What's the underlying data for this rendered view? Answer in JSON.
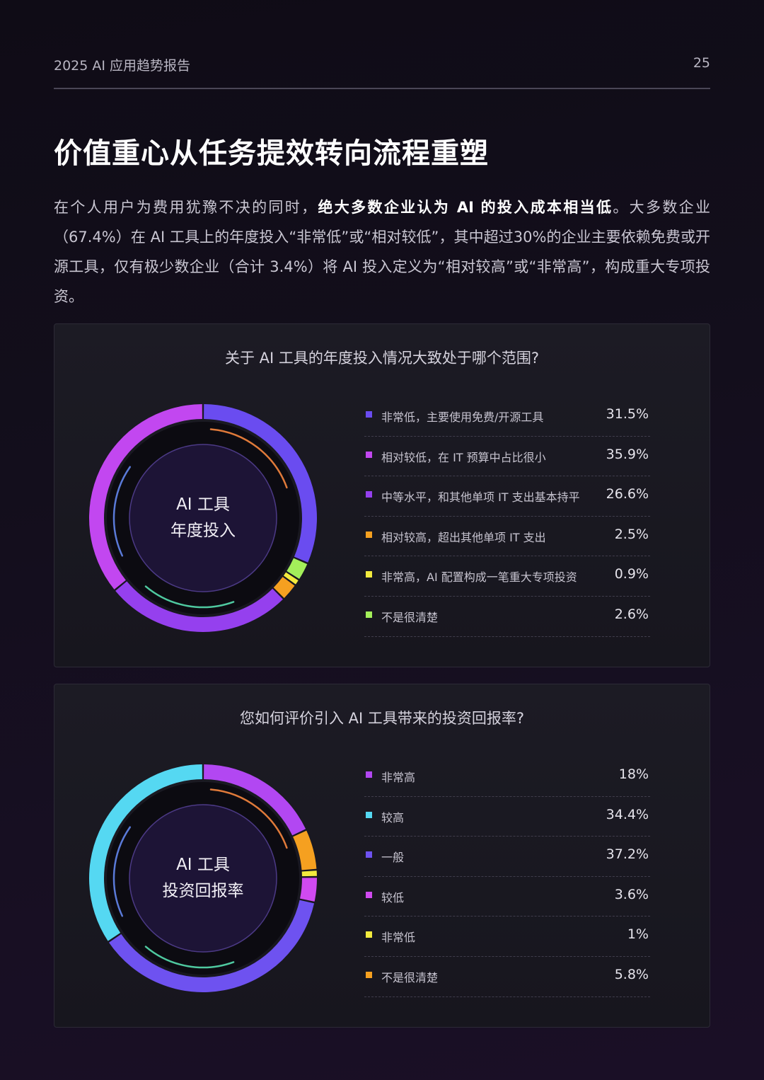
{
  "header": {
    "doc_title": "2025 AI 应用趋势报告",
    "page_number": "25"
  },
  "page_title": "价值重心从任务提效转向流程重塑",
  "intro": {
    "part1": "在个人用户为费用犹豫不决的同时，",
    "bold": "绝大多数企业认为 AI 的投入成本相当低",
    "part2": "。大多数企业（67.4%）在 AI 工具上的年度投入“非常低”或“相对较低”，其中超过30%的企业主要依赖免费或开源工具，仅有极少数企业（合计 3.4%）将 AI 投入定义为“相对较高”或“非常高”，构成重大专项投资。"
  },
  "chart_data": [
    {
      "type": "pie",
      "title": "关于 AI 工具的年度投入情况大致处于哪个范围?",
      "center_label_line1": "AI 工具",
      "center_label_line2": "年度投入",
      "slices": [
        {
          "label": "非常低，主要使用免费/开源工具",
          "value": 31.5,
          "display": "31.5%",
          "color": "#6a4cf0"
        },
        {
          "label": "相对较低，在 IT 预算中占比很小",
          "value": 35.9,
          "display": "35.9%",
          "color": "#c247f0"
        },
        {
          "label": "中等水平，和其他单项 IT 支出基本持平",
          "value": 26.6,
          "display": "26.6%",
          "color": "#9540ee"
        },
        {
          "label": "相对较高，超出其他单项 IT 支出",
          "value": 2.5,
          "display": "2.5%",
          "color": "#f5a020"
        },
        {
          "label": "非常高，AI 配置构成一笔重大专项投资",
          "value": 0.9,
          "display": "0.9%",
          "color": "#f2ea3e"
        },
        {
          "label": "不是很清楚",
          "value": 2.6,
          "display": "2.6%",
          "color": "#a3ef5a"
        }
      ],
      "arc_order": [
        0,
        5,
        4,
        3,
        2,
        1
      ]
    },
    {
      "type": "pie",
      "title": "您如何评价引入 AI 工具带来的投资回报率?",
      "center_label_line1": "AI 工具",
      "center_label_line2": "投资回报率",
      "slices": [
        {
          "label": "非常高",
          "value": 18,
          "display": "18%",
          "color": "#b247f2"
        },
        {
          "label": "较高",
          "value": 34.4,
          "display": "34.4%",
          "color": "#55d8f2"
        },
        {
          "label": "一般",
          "value": 37.2,
          "display": "37.2%",
          "color": "#6e52f0"
        },
        {
          "label": "较低",
          "value": 3.6,
          "display": "3.6%",
          "color": "#d04af0"
        },
        {
          "label": "非常低",
          "value": 1,
          "display": "1%",
          "color": "#f2ea3e"
        },
        {
          "label": "不是很清楚",
          "value": 5.8,
          "display": "5.8%",
          "color": "#f5a020"
        }
      ],
      "arc_order": [
        0,
        5,
        4,
        3,
        2,
        1
      ]
    }
  ]
}
